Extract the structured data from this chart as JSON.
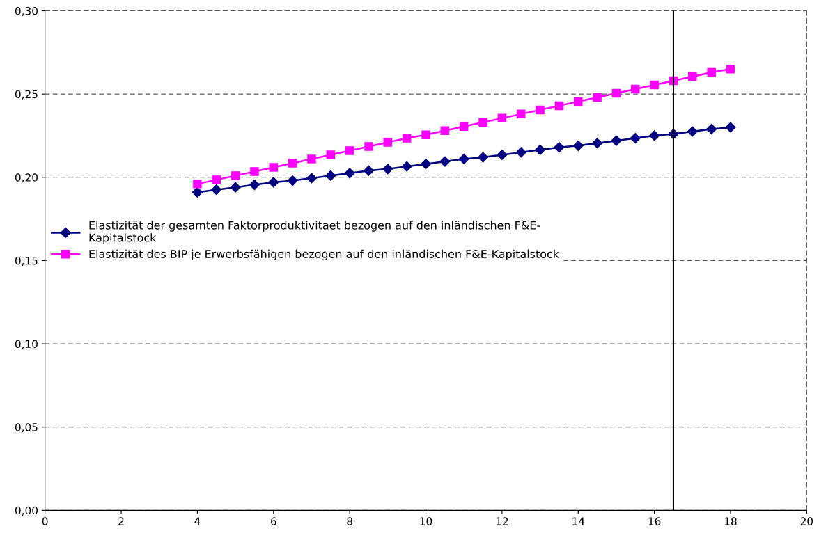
{
  "chart_data": {
    "type": "line",
    "x": [
      4,
      4.5,
      5,
      5.5,
      6,
      6.5,
      7,
      7.5,
      8,
      8.5,
      9,
      9.5,
      10,
      10.5,
      11,
      11.5,
      12,
      12.5,
      13,
      13.5,
      14,
      14.5,
      15,
      15.5,
      16,
      16.5,
      17,
      17.5,
      18
    ],
    "series": [
      {
        "name": "Elastizität der gesamten Faktorproduktivitaet bezogen auf den inländischen F&E-\nKapitalstock",
        "color": "#000080",
        "marker": "diamond",
        "values": [
          0.191,
          0.1925,
          0.194,
          0.1955,
          0.197,
          0.198,
          0.1995,
          0.201,
          0.2025,
          0.204,
          0.205,
          0.2065,
          0.208,
          0.2095,
          0.211,
          0.212,
          0.2135,
          0.215,
          0.2165,
          0.218,
          0.219,
          0.2205,
          0.222,
          0.2235,
          0.225,
          0.226,
          0.2275,
          0.229,
          0.23
        ]
      },
      {
        "name": "Elastizität des BIP je Erwerbsfähigen bezogen auf den inländischen F&E-Kapitalstock",
        "color": "#ff00ff",
        "marker": "square",
        "values": [
          0.196,
          0.1985,
          0.201,
          0.2035,
          0.206,
          0.2085,
          0.211,
          0.2135,
          0.216,
          0.2185,
          0.221,
          0.2235,
          0.2255,
          0.228,
          0.2305,
          0.233,
          0.2355,
          0.238,
          0.2405,
          0.243,
          0.2455,
          0.248,
          0.2505,
          0.253,
          0.2555,
          0.258,
          0.2605,
          0.263,
          0.265
        ]
      }
    ],
    "xlim": [
      0,
      20
    ],
    "xticks": [
      0,
      2,
      4,
      6,
      8,
      10,
      12,
      14,
      16,
      18,
      20
    ],
    "ylim": [
      0,
      0.3
    ],
    "yticks": [
      {
        "value": 0,
        "label": "0,00"
      },
      {
        "value": 0.05,
        "label": "0,05"
      },
      {
        "value": 0.1,
        "label": "0,10"
      },
      {
        "value": 0.15,
        "label": "0,15"
      },
      {
        "value": 0.2,
        "label": "0,20"
      },
      {
        "value": 0.25,
        "label": "0,25"
      },
      {
        "value": 0.3,
        "label": "0,30"
      }
    ],
    "ref_lines": [
      {
        "axis": "x",
        "value": 16.5,
        "label": null,
        "color": "#000000"
      }
    ],
    "grid": "y",
    "legend": "left",
    "line_style": "solid"
  }
}
